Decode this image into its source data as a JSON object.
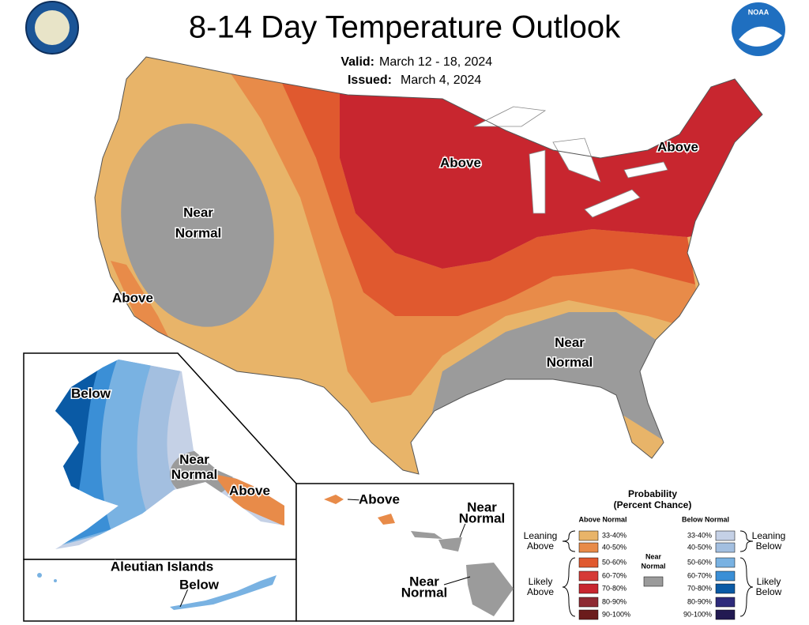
{
  "header": {
    "title": "8-14 Day Temperature Outlook",
    "valid_label": "Valid:",
    "valid": "March 12 - 18, 2024",
    "issued_label": "Issued:",
    "issued": "March 4, 2024",
    "logo": "NOAA"
  },
  "map_labels": [
    {
      "lines": [
        "Above"
      ]
    },
    {
      "lines": [
        "Above"
      ]
    },
    {
      "lines": [
        "Above"
      ]
    },
    {
      "lines": [
        "Near",
        "Normal"
      ]
    },
    {
      "lines": [
        "Near",
        "Normal"
      ]
    },
    {
      "lines": [
        "Below"
      ]
    },
    {
      "lines": [
        "Near",
        "Normal"
      ]
    },
    {
      "lines": [
        "Above"
      ]
    },
    {
      "lines": [
        "Above"
      ]
    },
    {
      "lines": [
        "Near",
        "Normal"
      ]
    },
    {
      "lines": [
        "Near",
        "Normal"
      ]
    },
    {
      "lines": [
        "Aleutian Islands"
      ]
    },
    {
      "lines": [
        "Below"
      ]
    }
  ],
  "legend": {
    "title": [
      "Probability",
      "(Percent Chance)"
    ],
    "above_heading": "Above Normal",
    "below_heading": "Below Normal",
    "above": [
      {
        "range": "33-40%",
        "color": "#e8b469"
      },
      {
        "range": "40-50%",
        "color": "#e88b49"
      },
      {
        "range": "50-60%",
        "color": "#e0592f"
      },
      {
        "range": "60-70%",
        "color": "#d63a36"
      },
      {
        "range": "70-80%",
        "color": "#c8262f"
      },
      {
        "range": "80-90%",
        "color": "#8e2a33"
      },
      {
        "range": "90-100%",
        "color": "#6b1c1c"
      }
    ],
    "below": [
      {
        "range": "33-40%",
        "color": "#c5d1e6"
      },
      {
        "range": "40-50%",
        "color": "#a3bfe0"
      },
      {
        "range": "50-60%",
        "color": "#79b2e2"
      },
      {
        "range": "60-70%",
        "color": "#3b8fd6"
      },
      {
        "range": "70-80%",
        "color": "#0a5aa5"
      },
      {
        "range": "80-90%",
        "color": "#2e2b7b"
      },
      {
        "range": "90-100%",
        "color": "#221a52"
      }
    ],
    "near": {
      "lines": [
        "Near",
        "Normal"
      ],
      "color": "#9b9b9b"
    },
    "groups": [
      {
        "lines": [
          "Leaning",
          "Above"
        ]
      },
      {
        "lines": [
          "Likely",
          "Above"
        ]
      },
      {
        "lines": [
          "Leaning",
          "Below"
        ]
      },
      {
        "lines": [
          "Likely",
          "Below"
        ]
      }
    ]
  }
}
